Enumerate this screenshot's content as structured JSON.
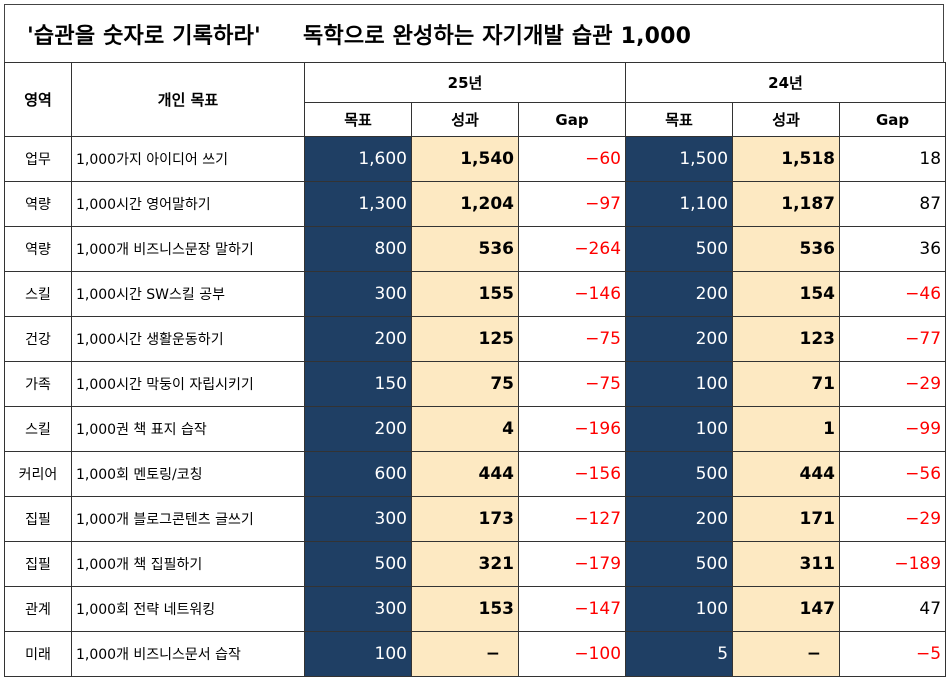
{
  "title": {
    "left": "'습관을 숫자로 기록하라'",
    "right": "독학으로 완성하는 자기개발 습관 1,000"
  },
  "header": {
    "area": "영역",
    "goal": "개인 목표",
    "year_a": "25년",
    "year_b": "24년",
    "target": "목표",
    "result": "성과",
    "gap": "Gap"
  },
  "colors": {
    "target_bg": "#1f3f64",
    "result_bg": "#fde9c2",
    "negative": "#ff0000"
  },
  "rows": [
    {
      "area": "업무",
      "goal": "1,000가지 아이디어 쓰기",
      "t25": "1,600",
      "r25": "1,540",
      "g25": "−60",
      "t24": "1,500",
      "r24": "1,518",
      "g24": "18"
    },
    {
      "area": "역량",
      "goal": "1,000시간 영어말하기",
      "t25": "1,300",
      "r25": "1,204",
      "g25": "−97",
      "t24": "1,100",
      "r24": "1,187",
      "g24": "87"
    },
    {
      "area": "역량",
      "goal": "1,000개 비즈니스문장 말하기",
      "t25": "800",
      "r25": "536",
      "g25": "−264",
      "t24": "500",
      "r24": "536",
      "g24": "36"
    },
    {
      "area": "스킬",
      "goal": "1,000시간 SW스킬 공부",
      "t25": "300",
      "r25": "155",
      "g25": "−146",
      "t24": "200",
      "r24": "154",
      "g24": "−46"
    },
    {
      "area": "건강",
      "goal": "1,000시간 생활운동하기",
      "t25": "200",
      "r25": "125",
      "g25": "−75",
      "t24": "200",
      "r24": "123",
      "g24": "−77"
    },
    {
      "area": "가족",
      "goal": "1,000시간 막둥이 자립시키기",
      "t25": "150",
      "r25": "75",
      "g25": "−75",
      "t24": "100",
      "r24": "71",
      "g24": "−29"
    },
    {
      "area": "스킬",
      "goal": "1,000권 책 표지 습작",
      "t25": "200",
      "r25": "4",
      "g25": "−196",
      "t24": "100",
      "r24": "1",
      "g24": "−99"
    },
    {
      "area": "커리어",
      "goal": "1,000회 멘토링/코칭",
      "t25": "600",
      "r25": "444",
      "g25": "−156",
      "t24": "500",
      "r24": "444",
      "g24": "−56"
    },
    {
      "area": "집필",
      "goal": "1,000개 블로그콘텐츠 글쓰기",
      "t25": "300",
      "r25": "173",
      "g25": "−127",
      "t24": "200",
      "r24": "171",
      "g24": "−29"
    },
    {
      "area": "집필",
      "goal": "1,000개 책 집필하기",
      "t25": "500",
      "r25": "321",
      "g25": "−179",
      "t24": "500",
      "r24": "311",
      "g24": "−189"
    },
    {
      "area": "관계",
      "goal": "1,000회 전략 네트워킹",
      "t25": "300",
      "r25": "153",
      "g25": "−147",
      "t24": "100",
      "r24": "147",
      "g24": "47"
    },
    {
      "area": "미래",
      "goal": "1,000개 비즈니스문서 습작",
      "t25": "100",
      "r25": "−",
      "g25": "−100",
      "t24": "5",
      "r24": "−",
      "g24": "−5"
    }
  ]
}
